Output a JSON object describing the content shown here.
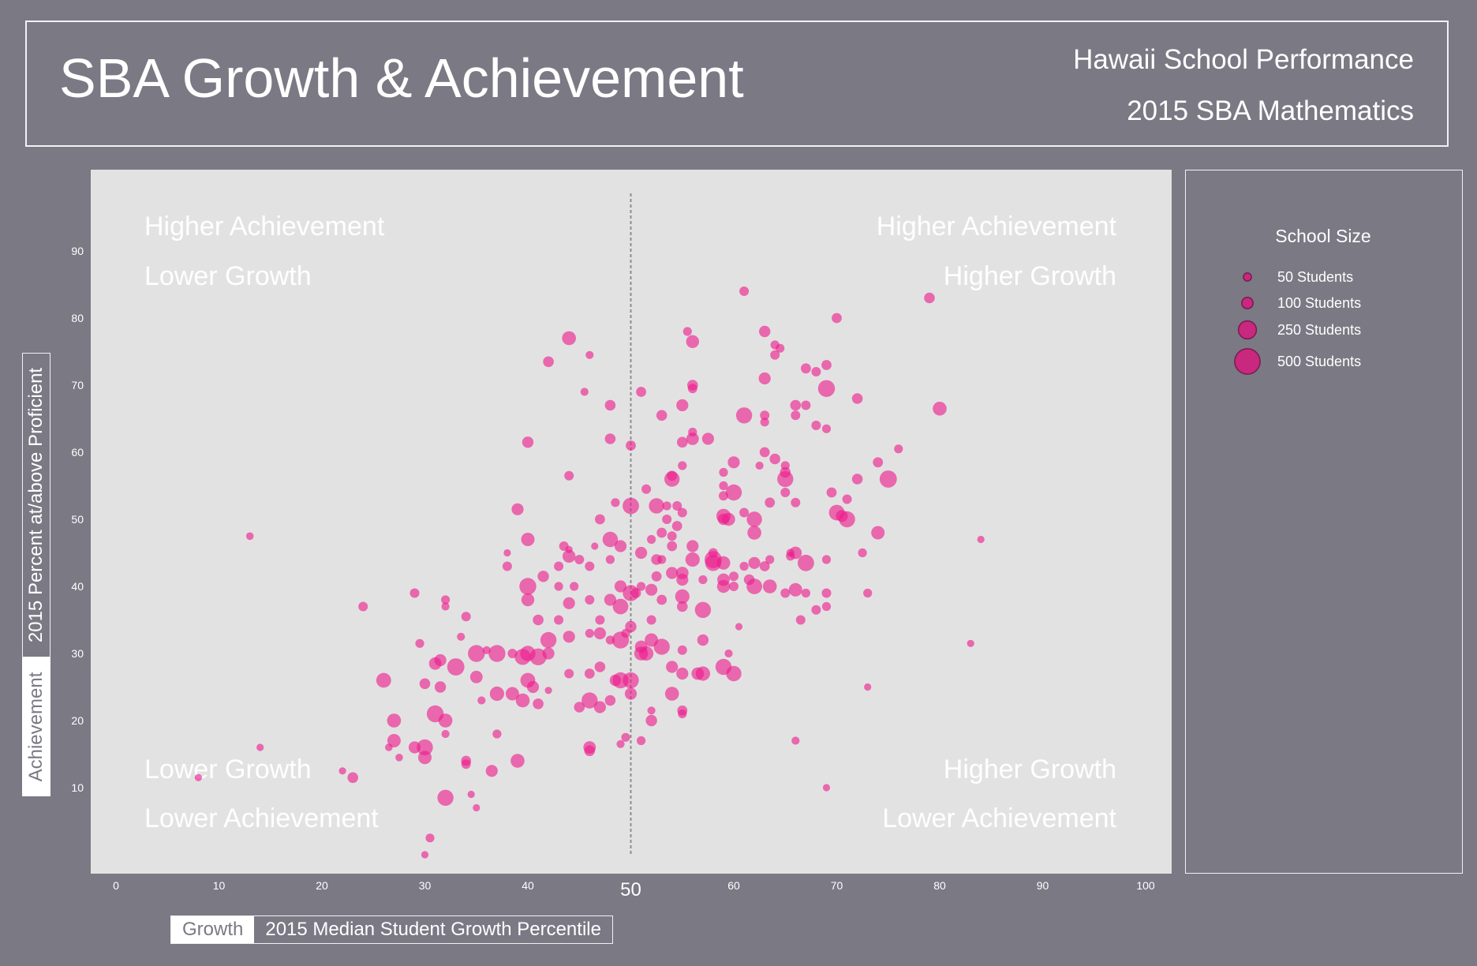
{
  "header": {
    "title": "SBA Growth & Achievement",
    "subtitle_1": "Hawaii School Performance",
    "subtitle_2": "2015 SBA Mathematics"
  },
  "quadrants": {
    "top_left": [
      "Higher Achievement",
      "Lower Growth"
    ],
    "top_right": [
      "Higher Achievement",
      "Higher Growth"
    ],
    "bottom_left": [
      "Lower Growth",
      "Lower Achievement"
    ],
    "bottom_right": [
      "Higher Growth",
      "Lower Achievement"
    ]
  },
  "legend": {
    "title": "School Size",
    "items": [
      {
        "label": "50 Students",
        "size": 50
      },
      {
        "label": "100 Students",
        "size": 100
      },
      {
        "label": "250 Students",
        "size": 250
      },
      {
        "label": "500 Students",
        "size": 500
      }
    ]
  },
  "y_axis_title": {
    "tag": "Achievement",
    "label": "2015 Percent at/above Proficient"
  },
  "x_axis_title": {
    "tag": "Growth",
    "label": "2015 Median Student Growth Percentile"
  },
  "colors": {
    "background": "#7a7984",
    "plot_bg": "#e2e2e2",
    "bubble": "#ee1c8c",
    "legend_bubble": "#c8287e",
    "reference_line": "#8e8e8e"
  },
  "chart_data": {
    "type": "scatter",
    "xlabel": "2015 Median Student Growth Percentile",
    "ylabel": "2015 Percent at/above Proficient",
    "xlim": [
      0,
      100
    ],
    "ylim": [
      0,
      100
    ],
    "xticks": [
      0,
      10,
      20,
      30,
      40,
      50,
      60,
      70,
      80,
      90,
      100
    ],
    "yticks": [
      10,
      20,
      30,
      40,
      50,
      60,
      70,
      80,
      90
    ],
    "reference_line": {
      "x": 50,
      "label": "50"
    },
    "grid": false,
    "legend_position": "right",
    "points": [
      [
        8,
        11.5,
        40
      ],
      [
        13,
        47.5,
        45
      ],
      [
        14,
        16,
        40
      ],
      [
        22,
        12.5,
        40
      ],
      [
        23,
        11.5,
        90
      ],
      [
        24,
        37,
        70
      ],
      [
        26,
        26,
        170
      ],
      [
        26.5,
        16,
        45
      ],
      [
        27,
        20,
        150
      ],
      [
        27,
        17,
        140
      ],
      [
        27.5,
        14.5,
        45
      ],
      [
        29,
        39,
        70
      ],
      [
        29,
        16,
        110
      ],
      [
        29.5,
        31.5,
        60
      ],
      [
        30,
        14.5,
        140
      ],
      [
        30,
        16,
        200
      ],
      [
        30,
        25.5,
        90
      ],
      [
        30.5,
        2.5,
        60
      ],
      [
        30,
        0,
        40
      ],
      [
        31,
        21,
        220
      ],
      [
        31,
        28.5,
        120
      ],
      [
        31.5,
        29,
        110
      ],
      [
        31.5,
        25,
        100
      ],
      [
        32,
        20,
        150
      ],
      [
        32,
        18,
        50
      ],
      [
        32,
        38,
        60
      ],
      [
        32,
        37,
        50
      ],
      [
        32,
        8.5,
        200
      ],
      [
        33,
        28,
        230
      ],
      [
        33.5,
        32.5,
        50
      ],
      [
        34,
        35.5,
        70
      ],
      [
        34,
        14,
        80
      ],
      [
        34,
        13.5,
        70
      ],
      [
        34.5,
        9,
        40
      ],
      [
        35,
        26.5,
        120
      ],
      [
        35,
        30,
        220
      ],
      [
        35,
        7,
        40
      ],
      [
        35.5,
        23,
        50
      ],
      [
        36,
        30.5,
        50
      ],
      [
        36.5,
        12.5,
        110
      ],
      [
        37,
        24,
        160
      ],
      [
        37,
        30,
        220
      ],
      [
        37,
        18,
        60
      ],
      [
        38,
        43,
        70
      ],
      [
        38,
        45,
        40
      ],
      [
        38.5,
        24,
        140
      ],
      [
        38.5,
        30,
        70
      ],
      [
        39,
        14,
        150
      ],
      [
        39,
        51.5,
        110
      ],
      [
        39.5,
        29.5,
        200
      ],
      [
        39.5,
        23,
        150
      ],
      [
        40,
        40,
        220
      ],
      [
        40,
        38,
        130
      ],
      [
        40,
        47,
        140
      ],
      [
        40,
        61.5,
        100
      ],
      [
        40,
        30,
        180
      ],
      [
        40,
        26,
        170
      ],
      [
        40.5,
        25,
        110
      ],
      [
        41,
        29.5,
        220
      ],
      [
        41,
        35,
        90
      ],
      [
        41,
        22.5,
        90
      ],
      [
        41.5,
        41.5,
        100
      ],
      [
        42,
        30,
        110
      ],
      [
        42,
        73.5,
        90
      ],
      [
        42,
        32,
        200
      ],
      [
        42,
        24.5,
        40
      ],
      [
        43,
        43,
        70
      ],
      [
        43,
        40,
        60
      ],
      [
        43,
        35,
        70
      ],
      [
        43.5,
        46,
        70
      ],
      [
        44,
        56.5,
        70
      ],
      [
        44,
        44.5,
        130
      ],
      [
        44,
        37.5,
        110
      ],
      [
        44,
        32.5,
        110
      ],
      [
        44,
        27,
        70
      ],
      [
        44,
        77,
        150
      ],
      [
        44,
        45.5,
        40
      ],
      [
        44.5,
        40,
        60
      ],
      [
        45,
        22,
        90
      ],
      [
        45,
        44,
        70
      ],
      [
        45.5,
        69,
        50
      ],
      [
        46,
        74.5,
        50
      ],
      [
        46,
        43,
        70
      ],
      [
        46,
        38,
        70
      ],
      [
        46,
        27,
        80
      ],
      [
        46,
        23,
        200
      ],
      [
        46,
        16,
        120
      ],
      [
        46,
        15.5,
        90
      ],
      [
        46,
        33,
        60
      ],
      [
        46.5,
        46,
        40
      ],
      [
        47,
        33,
        110
      ],
      [
        47,
        35,
        70
      ],
      [
        47,
        22,
        110
      ],
      [
        47,
        28,
        90
      ],
      [
        47,
        50,
        80
      ],
      [
        48,
        67,
        90
      ],
      [
        48,
        62,
        90
      ],
      [
        48,
        47,
        180
      ],
      [
        48,
        32,
        60
      ],
      [
        48,
        38,
        110
      ],
      [
        48,
        23,
        90
      ],
      [
        48,
        44,
        60
      ],
      [
        48.5,
        52.5,
        60
      ],
      [
        48.5,
        26,
        100
      ],
      [
        49,
        40,
        110
      ],
      [
        49,
        26,
        200
      ],
      [
        49,
        37,
        190
      ],
      [
        49,
        32,
        220
      ],
      [
        49,
        46,
        110
      ],
      [
        49,
        16.5,
        50
      ],
      [
        49.5,
        33,
        60
      ],
      [
        49.5,
        17.5,
        60
      ],
      [
        50,
        52,
        210
      ],
      [
        50,
        61,
        80
      ],
      [
        50,
        39,
        200
      ],
      [
        50,
        34,
        100
      ],
      [
        50,
        24,
        110
      ],
      [
        50,
        26,
        200
      ],
      [
        50.5,
        39,
        80
      ],
      [
        51,
        30,
        150
      ],
      [
        51,
        31,
        120
      ],
      [
        51,
        40,
        60
      ],
      [
        51,
        69,
        80
      ],
      [
        51,
        45,
        110
      ],
      [
        51,
        17,
        60
      ],
      [
        51.5,
        54.5,
        70
      ],
      [
        51.5,
        30,
        160
      ],
      [
        52,
        39.5,
        110
      ],
      [
        52,
        47,
        60
      ],
      [
        52,
        20,
        100
      ],
      [
        52,
        35,
        70
      ],
      [
        52,
        21.5,
        50
      ],
      [
        52,
        32,
        140
      ],
      [
        52.5,
        52,
        180
      ],
      [
        52.5,
        44,
        90
      ],
      [
        52.5,
        41.5,
        80
      ],
      [
        53,
        48,
        80
      ],
      [
        53,
        31,
        200
      ],
      [
        53,
        38,
        80
      ],
      [
        53,
        44,
        60
      ],
      [
        53,
        65.5,
        90
      ],
      [
        53.5,
        50,
        70
      ],
      [
        53.5,
        52,
        60
      ],
      [
        54,
        46,
        80
      ],
      [
        54,
        42,
        110
      ],
      [
        54,
        56,
        180
      ],
      [
        54,
        28,
        110
      ],
      [
        54,
        47.5,
        70
      ],
      [
        54,
        24,
        150
      ],
      [
        54,
        56.5,
        80
      ],
      [
        54.5,
        52,
        70
      ],
      [
        54.5,
        49,
        80
      ],
      [
        55,
        61.5,
        90
      ],
      [
        55,
        51,
        70
      ],
      [
        55,
        67,
        110
      ],
      [
        55,
        58,
        60
      ],
      [
        55,
        30.5,
        70
      ],
      [
        55,
        21.5,
        80
      ],
      [
        55,
        21,
        60
      ],
      [
        55,
        27,
        110
      ],
      [
        55,
        38.5,
        160
      ],
      [
        55,
        42,
        120
      ],
      [
        55,
        41,
        110
      ],
      [
        55,
        37,
        90
      ],
      [
        55.5,
        78,
        60
      ],
      [
        56,
        76.5,
        130
      ],
      [
        56,
        70,
        90
      ],
      [
        56,
        69.5,
        70
      ],
      [
        56,
        62,
        120
      ],
      [
        56,
        63,
        60
      ],
      [
        56,
        46,
        110
      ],
      [
        56,
        44,
        160
      ],
      [
        56.5,
        27,
        120
      ],
      [
        57,
        27,
        160
      ],
      [
        57,
        41,
        60
      ],
      [
        57,
        32,
        100
      ],
      [
        57,
        36.5,
        200
      ],
      [
        57.5,
        62,
        110
      ],
      [
        58,
        44,
        230
      ],
      [
        58,
        45,
        70
      ],
      [
        58,
        43.5,
        200
      ],
      [
        59,
        57,
        60
      ],
      [
        59,
        40,
        130
      ],
      [
        59,
        53.5,
        70
      ],
      [
        59,
        50,
        100
      ],
      [
        59,
        55,
        60
      ],
      [
        59,
        50.5,
        160
      ],
      [
        59,
        28,
        200
      ],
      [
        59,
        41,
        120
      ],
      [
        59,
        43.5,
        140
      ],
      [
        59.5,
        30,
        50
      ],
      [
        59.5,
        50,
        130
      ],
      [
        60,
        58.5,
        110
      ],
      [
        60,
        54,
        200
      ],
      [
        60,
        27,
        180
      ],
      [
        60,
        40,
        70
      ],
      [
        60,
        41.5,
        70
      ],
      [
        60.5,
        34,
        40
      ],
      [
        61,
        43,
        60
      ],
      [
        61,
        84,
        70
      ],
      [
        61,
        65.5,
        200
      ],
      [
        61,
        51,
        70
      ],
      [
        61.5,
        41,
        90
      ],
      [
        62,
        48,
        150
      ],
      [
        62,
        40,
        190
      ],
      [
        62,
        43.5,
        110
      ],
      [
        62,
        50,
        180
      ],
      [
        62.5,
        58,
        50
      ],
      [
        63,
        65.5,
        70
      ],
      [
        63,
        71,
        110
      ],
      [
        63,
        60,
        80
      ],
      [
        63,
        64.5,
        60
      ],
      [
        63,
        78,
        100
      ],
      [
        63,
        43,
        80
      ],
      [
        63.5,
        40,
        150
      ],
      [
        63.5,
        44,
        60
      ],
      [
        63.5,
        52.5,
        80
      ],
      [
        64,
        59,
        90
      ],
      [
        64,
        74.5,
        70
      ],
      [
        64,
        76,
        60
      ],
      [
        64.5,
        75.5,
        60
      ],
      [
        65,
        54,
        70
      ],
      [
        65,
        56,
        200
      ],
      [
        65,
        58,
        60
      ],
      [
        65,
        57,
        90
      ],
      [
        65,
        39,
        70
      ],
      [
        65.5,
        45,
        50
      ],
      [
        65.5,
        44.5,
        60
      ],
      [
        66,
        39.5,
        140
      ],
      [
        66,
        67,
        90
      ],
      [
        66,
        52.5,
        70
      ],
      [
        66,
        17,
        50
      ],
      [
        66,
        65.5,
        70
      ],
      [
        66,
        45,
        120
      ],
      [
        66.5,
        35,
        70
      ],
      [
        67,
        72.5,
        80
      ],
      [
        67,
        67,
        70
      ],
      [
        67,
        39,
        60
      ],
      [
        67,
        43.5,
        210
      ],
      [
        68,
        36.5,
        70
      ],
      [
        68,
        64,
        70
      ],
      [
        68,
        72,
        70
      ],
      [
        69,
        10,
        40
      ],
      [
        69,
        63.5,
        60
      ],
      [
        69,
        37,
        60
      ],
      [
        69,
        39,
        70
      ],
      [
        69,
        69.5,
        220
      ],
      [
        69,
        73,
        80
      ],
      [
        69,
        44,
        60
      ],
      [
        69.5,
        54,
        80
      ],
      [
        70,
        51,
        190
      ],
      [
        70,
        80,
        80
      ],
      [
        70.5,
        50.5,
        110
      ],
      [
        71,
        53,
        70
      ],
      [
        71,
        50,
        200
      ],
      [
        72,
        56,
        90
      ],
      [
        72,
        68,
        90
      ],
      [
        72.5,
        45,
        60
      ],
      [
        73,
        39,
        60
      ],
      [
        73,
        25,
        40
      ],
      [
        74,
        58.5,
        80
      ],
      [
        74,
        48,
        140
      ],
      [
        75,
        56,
        230
      ],
      [
        76,
        60.5,
        60
      ],
      [
        79,
        83,
        90
      ],
      [
        80,
        66.5,
        150
      ],
      [
        83,
        31.5,
        40
      ],
      [
        84,
        47,
        40
      ]
    ]
  }
}
